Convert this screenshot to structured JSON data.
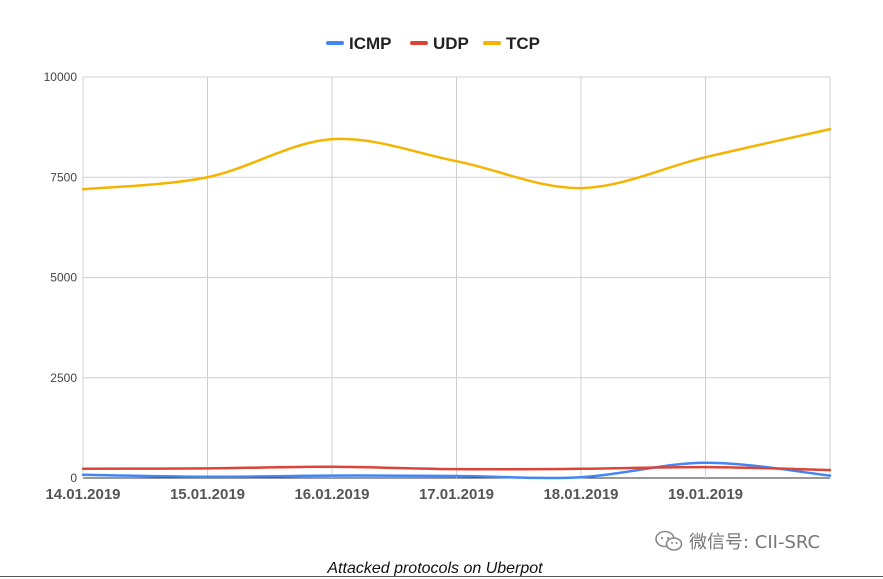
{
  "chart_data": {
    "type": "line",
    "categories": [
      "14.01.2019",
      "15.01.2019",
      "16.01.2019",
      "17.01.2019",
      "18.01.2019",
      "19.01.2019",
      ""
    ],
    "series": [
      {
        "name": "ICMP",
        "color": "#4285F4",
        "values": [
          80,
          30,
          60,
          50,
          20,
          380,
          60
        ]
      },
      {
        "name": "UDP",
        "color": "#DB4437",
        "values": [
          230,
          240,
          280,
          220,
          230,
          270,
          200
        ]
      },
      {
        "name": "TCP",
        "color": "#F4B400",
        "values": [
          7200,
          7500,
          8450,
          7900,
          7230,
          8000,
          8700
        ]
      }
    ],
    "ylim": [
      0,
      10000
    ],
    "yticks": [
      "10000",
      "7500",
      "5000",
      "2500",
      "0"
    ],
    "grid": true,
    "legend": "top-center",
    "caption": "Attacked protocols on Uberpot"
  },
  "watermark": "微信号: CII-SRC"
}
